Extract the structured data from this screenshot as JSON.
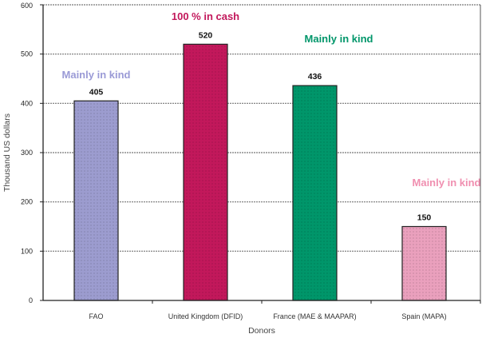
{
  "chart_data": {
    "type": "bar",
    "title": "",
    "xlabel": "Donors",
    "ylabel": "Thousand US dollars",
    "ylim": [
      0,
      600
    ],
    "yticks": [
      0,
      100,
      200,
      300,
      400,
      500,
      600
    ],
    "grid": true,
    "categories": [
      "FAO",
      "United Kingdom (DFID)",
      "France (MAE & MAAPAR)",
      "Spain (MAPA)"
    ],
    "values": [
      405,
      520,
      436,
      150
    ],
    "colors": [
      "#9c9ccf",
      "#c2185b",
      "#00966a",
      "#eaa0bd"
    ],
    "annotations": [
      {
        "text": "Mainly in kind",
        "color": "#9a9ad6"
      },
      {
        "text": "100 % in cash",
        "color": "#c2185b"
      },
      {
        "text": "Mainly in kind",
        "color": "#00966a"
      },
      {
        "text": "Mainly in kind",
        "color": "#f08fb0"
      }
    ]
  }
}
